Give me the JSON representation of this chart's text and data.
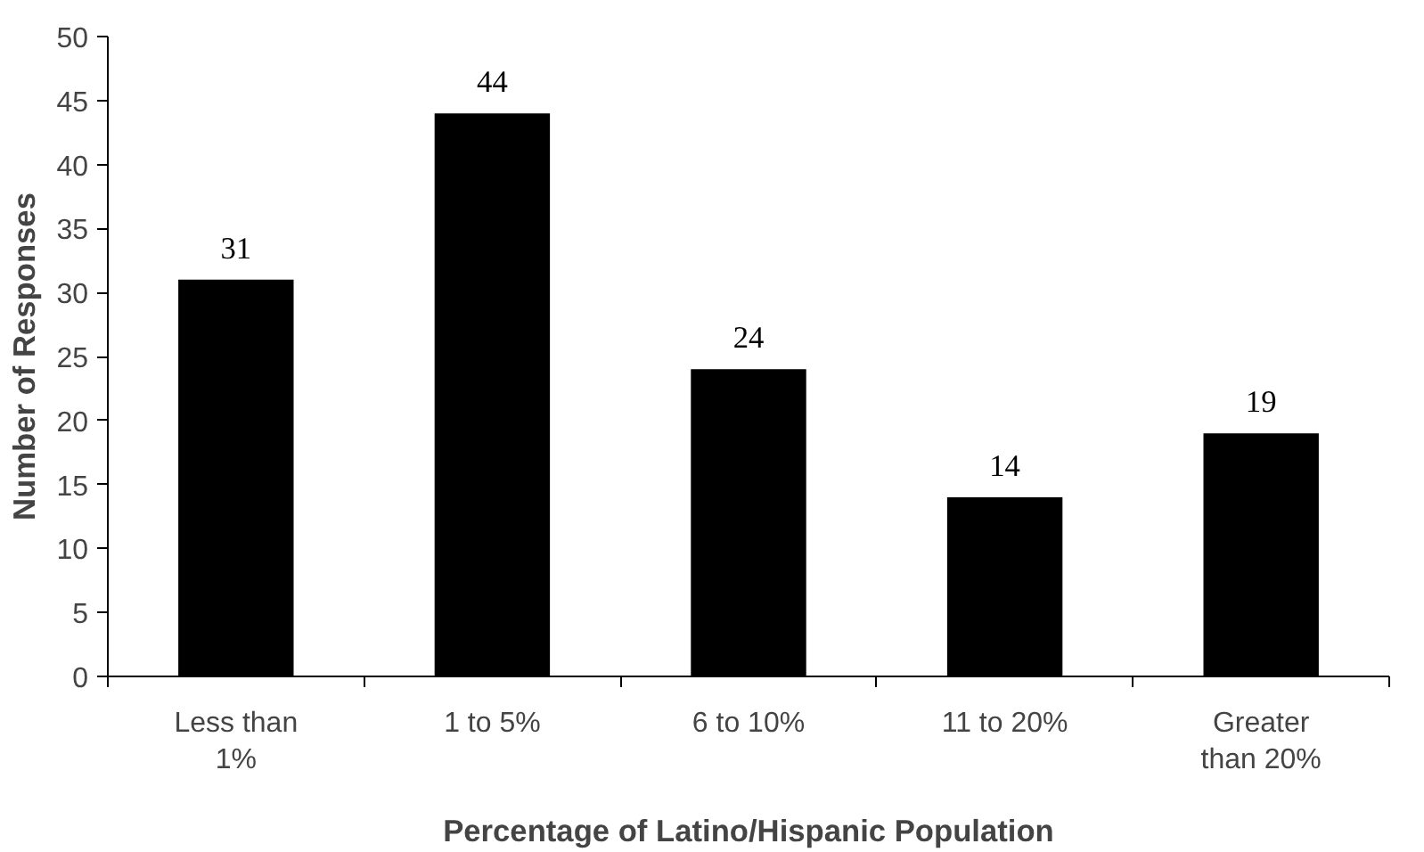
{
  "chart_data": {
    "type": "bar",
    "xlabel": "Percentage of Latino/Hispanic Population",
    "ylabel": "Number of Responses",
    "categories": [
      "Less than 1%",
      "1 to 5%",
      "6 to 10%",
      "11 to 20%",
      "Greater than 20%"
    ],
    "values": [
      31,
      44,
      24,
      14,
      19
    ],
    "color": "#000000",
    "ylim": [
      0,
      50
    ],
    "yticks": [
      0,
      5,
      10,
      15,
      20,
      25,
      30,
      35,
      40,
      45,
      50
    ],
    "grid": false,
    "data_labels": true
  }
}
